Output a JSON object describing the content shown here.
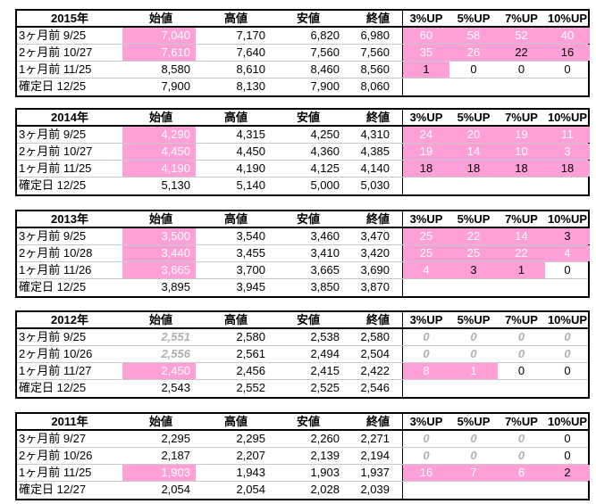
{
  "header": {
    "open": "始値",
    "high": "高値",
    "low": "安値",
    "close": "終値",
    "up3": "3%UP",
    "up5": "5%UP",
    "up7": "7%UP",
    "up10": "10%UP"
  },
  "highlight_color": "#ff9fd7",
  "blocks": [
    {
      "year": "2015年",
      "rows": [
        {
          "label": "3ヶ月前  9/25",
          "open": "7,040",
          "high": "7,170",
          "low": "6,820",
          "close": "6,980",
          "up3": "60",
          "up5": "58",
          "up7": "52",
          "up10": "40"
        },
        {
          "label": "2ヶ月前  10/27",
          "open": "7,610",
          "high": "7,640",
          "low": "7,560",
          "close": "7,560",
          "up3": "35",
          "up5": "26",
          "up7": "22",
          "up10": "16"
        },
        {
          "label": "1ヶ月前  11/25",
          "open": "8,580",
          "high": "8,610",
          "low": "8,460",
          "close": "8,560",
          "up3": "1",
          "up5": "0",
          "up7": "0",
          "up10": "0"
        },
        {
          "label": "確定日  12/25",
          "open": "7,900",
          "high": "8,130",
          "low": "7,900",
          "close": "8,060",
          "up3": "",
          "up5": "",
          "up7": "",
          "up10": ""
        }
      ]
    },
    {
      "year": "2014年",
      "rows": [
        {
          "label": "3ヶ月前  9/25",
          "open": "4,290",
          "high": "4,315",
          "low": "4,250",
          "close": "4,310",
          "up3": "24",
          "up5": "20",
          "up7": "19",
          "up10": "11"
        },
        {
          "label": "2ヶ月前  10/27",
          "open": "4,450",
          "high": "4,450",
          "low": "4,360",
          "close": "4,385",
          "up3": "19",
          "up5": "14",
          "up7": "10",
          "up10": "3"
        },
        {
          "label": "1ヶ月前  11/25",
          "open": "4,190",
          "high": "4,190",
          "low": "4,125",
          "close": "4,140",
          "up3": "18",
          "up5": "18",
          "up7": "18",
          "up10": "18"
        },
        {
          "label": "確定日  12/25",
          "open": "5,130",
          "high": "5,140",
          "low": "5,000",
          "close": "5,030",
          "up3": "",
          "up5": "",
          "up7": "",
          "up10": ""
        }
      ]
    },
    {
      "year": "2013年",
      "rows": [
        {
          "label": "3ヶ月前  9/25",
          "open": "3,500",
          "high": "3,540",
          "low": "3,460",
          "close": "3,470",
          "up3": "25",
          "up5": "22",
          "up7": "14",
          "up10": "3"
        },
        {
          "label": "2ヶ月前  10/28",
          "open": "3,440",
          "high": "3,455",
          "low": "3,410",
          "close": "3,420",
          "up3": "25",
          "up5": "25",
          "up7": "22",
          "up10": "4"
        },
        {
          "label": "1ヶ月前  11/26",
          "open": "3,665",
          "high": "3,700",
          "low": "3,665",
          "close": "3,690",
          "up3": "4",
          "up5": "3",
          "up7": "1",
          "up10": "0"
        },
        {
          "label": "確定日  12/25",
          "open": "3,895",
          "high": "3,945",
          "low": "3,850",
          "close": "3,870",
          "up3": "",
          "up5": "",
          "up7": "",
          "up10": ""
        }
      ]
    },
    {
      "year": "2012年",
      "rows": [
        {
          "label": "3ヶ月前  9/25",
          "open": "2,551",
          "high": "2,580",
          "low": "2,538",
          "close": "2,580",
          "up3": "0",
          "up5": "0",
          "up7": "0",
          "up10": "0"
        },
        {
          "label": "2ヶ月前  10/26",
          "open": "2,556",
          "high": "2,561",
          "low": "2,494",
          "close": "2,504",
          "up3": "0",
          "up5": "0",
          "up7": "0",
          "up10": "0"
        },
        {
          "label": "1ヶ月前  11/27",
          "open": "2,450",
          "high": "2,456",
          "low": "2,415",
          "close": "2,422",
          "up3": "8",
          "up5": "1",
          "up7": "0",
          "up10": "0"
        },
        {
          "label": "確定日  12/25",
          "open": "2,543",
          "high": "2,552",
          "low": "2,525",
          "close": "2,546",
          "up3": "",
          "up5": "",
          "up7": "",
          "up10": ""
        }
      ]
    },
    {
      "year": "2011年",
      "rows": [
        {
          "label": "3ヶ月前  9/27",
          "open": "2,295",
          "high": "2,295",
          "low": "2,260",
          "close": "2,271",
          "up3": "0",
          "up5": "0",
          "up7": "0",
          "up10": "0"
        },
        {
          "label": "2ヶ月前  10/26",
          "open": "2,187",
          "high": "2,207",
          "low": "2,139",
          "close": "2,194",
          "up3": "0",
          "up5": "0",
          "up7": "0",
          "up10": "0"
        },
        {
          "label": "1ヶ月前  11/25",
          "open": "1,903",
          "high": "1,943",
          "low": "1,903",
          "close": "1,937",
          "up3": "16",
          "up5": "7",
          "up7": "6",
          "up10": "2"
        },
        {
          "label": "確定日  12/27",
          "open": "2,054",
          "high": "2,054",
          "low": "2,028",
          "close": "2,039",
          "up3": "",
          "up5": "",
          "up7": "",
          "up10": ""
        }
      ]
    }
  ]
}
